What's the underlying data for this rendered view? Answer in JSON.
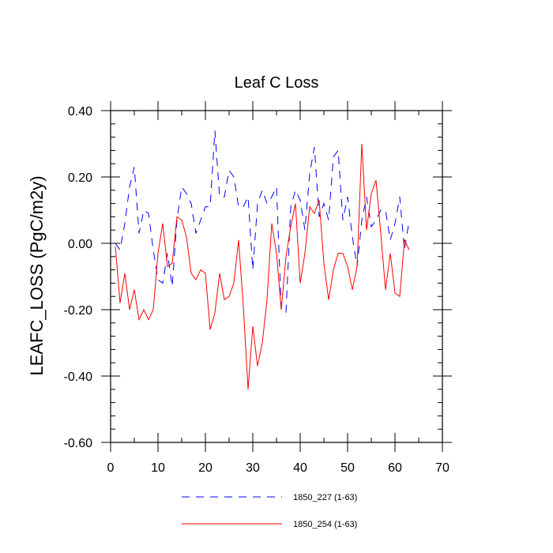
{
  "chart_data": {
    "type": "line",
    "title": "Leaf C Loss",
    "xlabel": "",
    "ylabel": "LEAFC_LOSS  (PgC/m2y)",
    "xlim": [
      0,
      70
    ],
    "ylim": [
      -0.6,
      0.4
    ],
    "x_ticks": [
      0,
      10,
      20,
      30,
      40,
      50,
      60,
      70
    ],
    "x_tick_labels": [
      "0",
      "10",
      "20",
      "30",
      "40",
      "50",
      "60",
      "70"
    ],
    "y_ticks": [
      0.4,
      0.2,
      0.0,
      -0.2,
      -0.4,
      -0.6
    ],
    "y_tick_labels": [
      "0.40",
      "0.20",
      "0.00",
      "-0.20",
      "-0.40",
      "-0.60"
    ],
    "grid": false,
    "legend_position": "bottom",
    "series": [
      {
        "name": "1850_227 (1-63)",
        "color": "#0000ff",
        "style": "dashed",
        "x": [
          1,
          2,
          3,
          4,
          5,
          6,
          7,
          8,
          9,
          10,
          11,
          12,
          13,
          14,
          15,
          16,
          17,
          18,
          19,
          20,
          21,
          22,
          23,
          24,
          25,
          26,
          27,
          28,
          29,
          30,
          31,
          32,
          33,
          34,
          35,
          36,
          37,
          38,
          39,
          40,
          41,
          42,
          43,
          44,
          45,
          46,
          47,
          48,
          49,
          50,
          51,
          52,
          53,
          54,
          55,
          56,
          57,
          58,
          59,
          60,
          61,
          62,
          63
        ],
        "values": [
          0.0,
          -0.02,
          0.06,
          0.17,
          0.23,
          0.03,
          0.1,
          0.09,
          -0.02,
          -0.11,
          -0.12,
          -0.03,
          -0.13,
          0.07,
          0.17,
          0.15,
          0.12,
          0.03,
          0.07,
          0.11,
          0.11,
          0.34,
          0.14,
          0.14,
          0.22,
          0.2,
          0.11,
          0.11,
          0.14,
          -0.08,
          0.12,
          0.16,
          0.12,
          0.14,
          0.17,
          -0.2,
          -0.21,
          0.11,
          0.16,
          0.13,
          0.04,
          0.21,
          0.29,
          0.08,
          0.12,
          0.07,
          0.26,
          0.28,
          0.07,
          0.14,
          0.02,
          -0.07,
          0.07,
          0.14,
          0.05,
          0.07,
          0.1,
          0.1,
          0.01,
          0.06,
          0.14,
          -0.02,
          0.07
        ]
      },
      {
        "name": "1850_254 (1-63)",
        "color": "#ff0000",
        "style": "solid",
        "x": [
          1,
          2,
          3,
          4,
          5,
          6,
          7,
          8,
          9,
          10,
          11,
          12,
          13,
          14,
          15,
          16,
          17,
          18,
          19,
          20,
          21,
          22,
          23,
          24,
          25,
          26,
          27,
          28,
          29,
          30,
          31,
          32,
          33,
          34,
          35,
          36,
          37,
          38,
          39,
          40,
          41,
          42,
          43,
          44,
          45,
          46,
          47,
          48,
          49,
          50,
          51,
          52,
          53,
          54,
          55,
          56,
          57,
          58,
          59,
          60,
          61,
          62,
          63
        ],
        "values": [
          -0.01,
          -0.18,
          -0.09,
          -0.2,
          -0.14,
          -0.23,
          -0.2,
          -0.23,
          -0.2,
          -0.03,
          0.06,
          -0.07,
          -0.06,
          0.08,
          0.07,
          0.02,
          -0.09,
          -0.11,
          -0.08,
          -0.09,
          -0.26,
          -0.21,
          -0.09,
          -0.17,
          -0.16,
          -0.12,
          0.01,
          -0.19,
          -0.44,
          -0.25,
          -0.37,
          -0.3,
          -0.17,
          0.06,
          -0.03,
          -0.2,
          -0.04,
          0.05,
          0.12,
          -0.12,
          -0.03,
          0.11,
          0.09,
          0.13,
          -0.06,
          -0.17,
          -0.08,
          -0.03,
          -0.03,
          -0.07,
          -0.14,
          -0.07,
          0.3,
          0.04,
          0.15,
          0.19,
          0.03,
          -0.14,
          -0.03,
          -0.15,
          -0.16,
          0.01,
          -0.02
        ]
      }
    ]
  }
}
